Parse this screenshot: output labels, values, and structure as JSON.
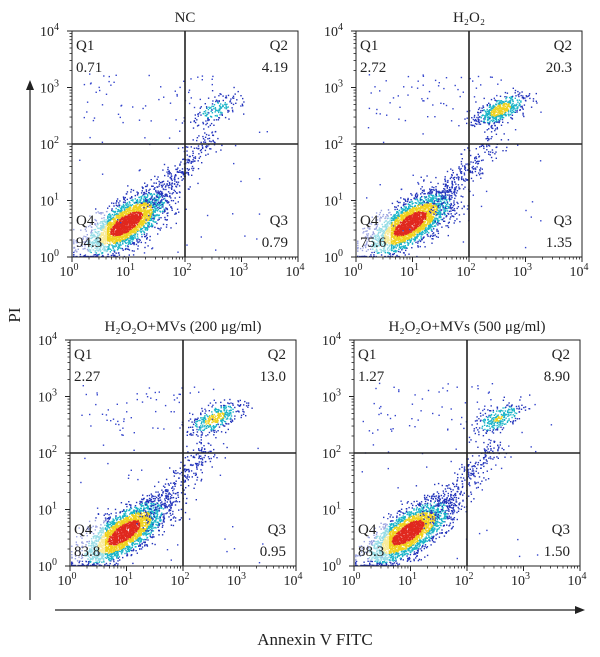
{
  "axes": {
    "x_label": "Annexin V FITC",
    "y_label": "PI"
  },
  "chart_data": [
    {
      "type": "scatter",
      "title": "NC",
      "xscale": "log",
      "yscale": "log",
      "xlim": [
        1,
        10000
      ],
      "ylim": [
        1,
        10000
      ],
      "x_ticks": [
        1,
        10,
        100,
        1000,
        10000
      ],
      "y_ticks": [
        1,
        10,
        100,
        1000,
        10000
      ],
      "gate": {
        "x": 100,
        "y": 100
      },
      "quadrants": [
        {
          "name": "Q1",
          "value": "0.71"
        },
        {
          "name": "Q2",
          "value": "4.19"
        },
        {
          "name": "Q3",
          "value": "0.79"
        },
        {
          "name": "Q4",
          "value": "94.3"
        }
      ]
    },
    {
      "type": "scatter",
      "title": "H₂O₂",
      "xscale": "log",
      "yscale": "log",
      "xlim": [
        1,
        10000
      ],
      "ylim": [
        1,
        10000
      ],
      "x_ticks": [
        1,
        10,
        100,
        1000,
        10000
      ],
      "y_ticks": [
        1,
        10,
        100,
        1000,
        10000
      ],
      "gate": {
        "x": 100,
        "y": 100
      },
      "quadrants": [
        {
          "name": "Q1",
          "value": "2.72"
        },
        {
          "name": "Q2",
          "value": "20.3"
        },
        {
          "name": "Q3",
          "value": "1.35"
        },
        {
          "name": "Q4",
          "value": "75.6"
        }
      ]
    },
    {
      "type": "scatter",
      "title": "H₂O₂O+MVs (200 μg/ml)",
      "xscale": "log",
      "yscale": "log",
      "xlim": [
        1,
        10000
      ],
      "ylim": [
        1,
        10000
      ],
      "x_ticks": [
        1,
        10,
        100,
        1000,
        10000
      ],
      "y_ticks": [
        1,
        10,
        100,
        1000,
        10000
      ],
      "gate": {
        "x": 100,
        "y": 100
      },
      "quadrants": [
        {
          "name": "Q1",
          "value": "2.27"
        },
        {
          "name": "Q2",
          "value": "13.0"
        },
        {
          "name": "Q3",
          "value": "0.95"
        },
        {
          "name": "Q4",
          "value": "83.8"
        }
      ]
    },
    {
      "type": "scatter",
      "title": "H₂O₂O+MVs (500 μg/ml)",
      "xscale": "log",
      "yscale": "log",
      "xlim": [
        1,
        10000
      ],
      "ylim": [
        1,
        10000
      ],
      "x_ticks": [
        1,
        10,
        100,
        1000,
        10000
      ],
      "y_ticks": [
        1,
        10,
        100,
        1000,
        10000
      ],
      "gate": {
        "x": 100,
        "y": 100
      },
      "quadrants": [
        {
          "name": "Q1",
          "value": "1.27"
        },
        {
          "name": "Q2",
          "value": "8.90"
        },
        {
          "name": "Q3",
          "value": "1.50"
        },
        {
          "name": "Q4",
          "value": "88.3"
        }
      ]
    }
  ],
  "colors": {
    "axis": "#222222",
    "sparse_dots": "#3344cc",
    "density_low": "#2233bb",
    "density_mid": "#19b4c8",
    "density_high": "#f0d21e",
    "density_peak": "#e0281e"
  }
}
